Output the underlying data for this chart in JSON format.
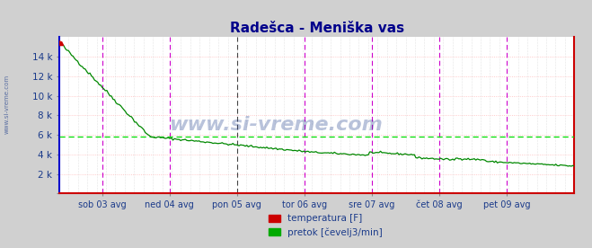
{
  "title": "Radešca - Meniška vas",
  "title_color": "#00008b",
  "title_fontsize": 11,
  "bg_color": "#d0d0d0",
  "plot_bg_color": "#ffffff",
  "grid_color_h": "#ffbbbb",
  "grid_color_dot": "#cccccc",
  "watermark": "www.si-vreme.com",
  "watermark_color": "#1a3a8a",
  "watermark_alpha": 0.3,
  "watermark_fontsize": 16,
  "ylabel_color": "#1a3a8a",
  "tick_label_color": "#1a3a8a",
  "ylim": [
    0,
    16000
  ],
  "yticks": [
    0,
    2000,
    4000,
    6000,
    8000,
    10000,
    12000,
    14000
  ],
  "ytick_labels": [
    "",
    "2 k",
    "4 k",
    "6 k",
    "8 k",
    "10 k",
    "12 k",
    "14 k"
  ],
  "x_day_labels": [
    "sob 03 avg",
    "ned 04 avg",
    "pon 05 avg",
    "tor 06 avg",
    "sre 07 avg",
    "čet 08 avg",
    "pet 09 avg"
  ],
  "x_day_positions": [
    0.0833,
    0.2143,
    0.3452,
    0.4762,
    0.6071,
    0.7381,
    0.869
  ],
  "left_margin_label": "www.si-vreme.com",
  "avg_line_value": 5800,
  "avg_line_color": "#00dd00",
  "border_color_left": "#0000cc",
  "border_color_bottom": "#cc0000",
  "border_color_right": "#cc0000",
  "border_color_top": "#cc0000",
  "legend_temp_color": "#cc0000",
  "legend_flow_color": "#00aa00",
  "legend_temp_label": "temperatura [F]",
  "legend_flow_label": "pretok [čevelj3/min]",
  "vert_line_color_magenta": "#cc00cc",
  "vert_line_color_dark": "#444444",
  "vert_line_positions_magenta": [
    0.0833,
    0.2143,
    0.4762,
    0.6071,
    0.7381,
    0.869
  ],
  "vert_line_positions_dark": [
    0.3452
  ],
  "flow_color": "#008800",
  "temp_color": "#cc0000",
  "num_points": 336,
  "seed": 42
}
